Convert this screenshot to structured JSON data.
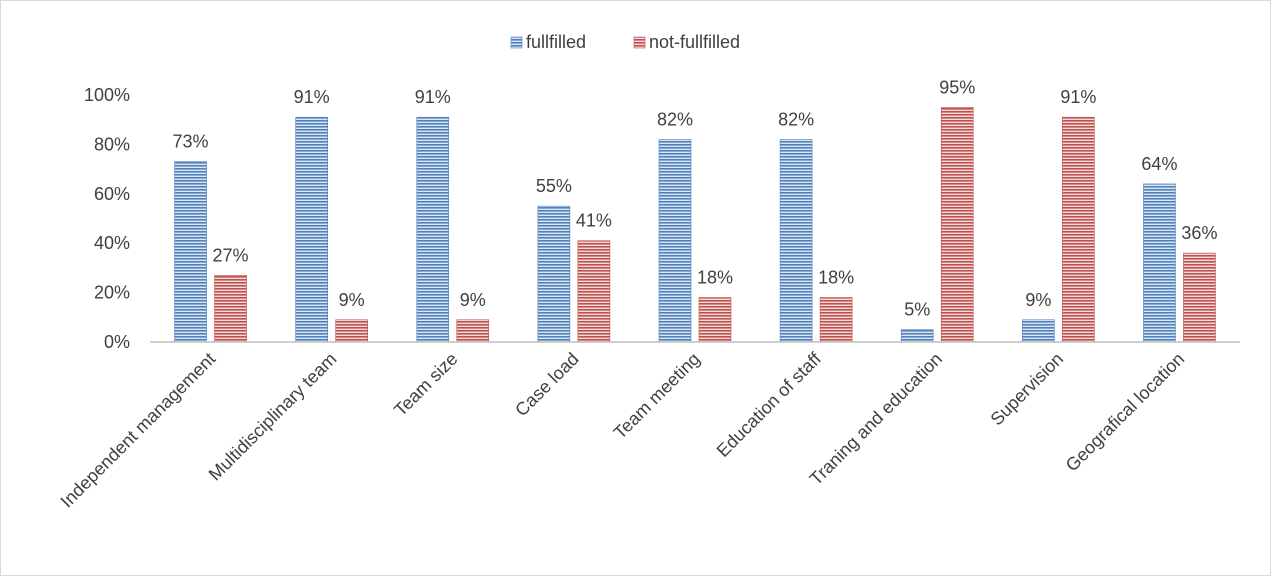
{
  "chart_data": {
    "type": "bar",
    "title": "",
    "xlabel": "",
    "ylabel": "",
    "ylim": [
      0,
      100
    ],
    "y_ticks": [
      "0%",
      "20%",
      "40%",
      "60%",
      "80%",
      "100%"
    ],
    "y_tick_values": [
      0,
      20,
      40,
      60,
      80,
      100
    ],
    "grid": false,
    "legend_position": "top-center",
    "categories": [
      "Independent management",
      "Multidisciplinary team",
      "Team size",
      "Case load",
      "Team meeting",
      "Education of staff",
      "Traning and education",
      "Supervision",
      "Geografical location"
    ],
    "series": [
      {
        "name": "fullfilled",
        "color": "#4f81bd",
        "values": [
          73,
          91,
          91,
          55,
          82,
          82,
          5,
          9,
          64
        ],
        "labels": [
          "73%",
          "91%",
          "91%",
          "55%",
          "82%",
          "82%",
          "5%",
          "9%",
          "64%"
        ]
      },
      {
        "name": "not-fullfilled",
        "color": "#c0504d",
        "values": [
          27,
          9,
          9,
          41,
          18,
          18,
          95,
          91,
          36
        ],
        "labels": [
          "27%",
          "9%",
          "9%",
          "41%",
          "18%",
          "18%",
          "95%",
          "91%",
          "36%"
        ]
      }
    ]
  }
}
